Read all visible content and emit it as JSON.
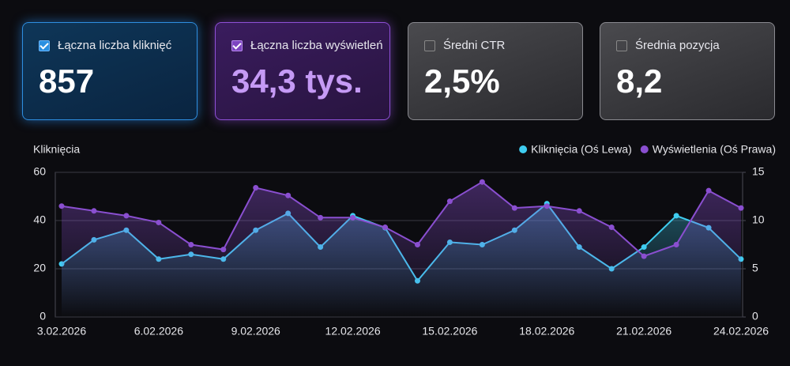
{
  "cards": [
    {
      "label": "Łączna liczba kliknięć",
      "value": "857",
      "checked": true
    },
    {
      "label": "Łączna liczba wyświetleń",
      "value": "34,3 tys.",
      "checked": true
    },
    {
      "label": "Średni CTR",
      "value": "2,5%",
      "checked": false
    },
    {
      "label": "Średnia pozycja",
      "value": "8,2",
      "checked": false
    }
  ],
  "chart_data": {
    "type": "line",
    "y_label": "Kliknięcia",
    "x": [
      "3.02.2026",
      null,
      null,
      "6.02.2026",
      null,
      null,
      "9.02.2026",
      null,
      null,
      "12.02.2026",
      null,
      null,
      "15.02.2026",
      null,
      null,
      "18.02.2026",
      null,
      null,
      "21.02.2026",
      null,
      null,
      "24.02.2026"
    ],
    "series": [
      {
        "name": "Kliknięcia (Oś Lewa)",
        "color": "#3fcdf0",
        "values": [
          22,
          32,
          36,
          24,
          26,
          24,
          36,
          43,
          29,
          42,
          37,
          15,
          31,
          30,
          36,
          47,
          29,
          20,
          29,
          42,
          37,
          24
        ]
      },
      {
        "name": "Wyświetlenia (Oś Prawa)",
        "color": "#8a4fd0",
        "axis": "y2",
        "values": [
          11.5,
          11,
          10.5,
          9.8,
          7.5,
          7,
          13.4,
          12.6,
          10.3,
          10.3,
          9.3,
          7.5,
          12,
          14,
          11.3,
          11.5,
          11,
          9.3,
          6.3,
          7.5,
          13.1,
          11.3
        ]
      }
    ],
    "ylim": [
      0,
      60
    ],
    "yticks": [
      0,
      20,
      40,
      60
    ],
    "y2lim": [
      0,
      15
    ],
    "y2ticks": [
      0,
      5,
      10,
      15
    ],
    "grid": true,
    "legend": "top-right"
  }
}
